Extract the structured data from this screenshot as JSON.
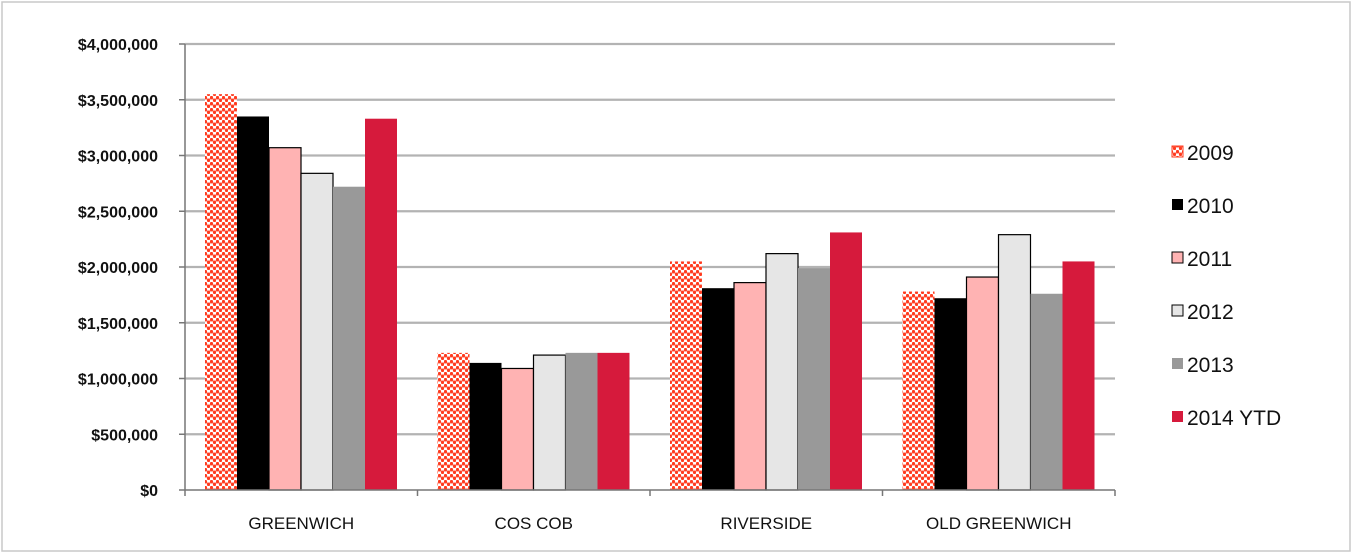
{
  "top_caption": "",
  "chart_data": {
    "type": "bar",
    "title": "",
    "xlabel": "",
    "ylabel": "",
    "categories": [
      "GREENWICH",
      "COS COB",
      "RIVERSIDE",
      "OLD GREENWICH"
    ],
    "ylim": [
      0,
      4000000
    ],
    "yticks": [
      0,
      500000,
      1000000,
      1500000,
      2000000,
      2500000,
      3000000,
      3500000,
      4000000
    ],
    "ytick_labels": [
      "$0",
      "$500,000",
      "$1,000,000",
      "$1,500,000",
      "$2,000,000",
      "$2,500,000",
      "$3,000,000",
      "$3,500,000",
      "$4,000,000"
    ],
    "grid": true,
    "legend_position": "right",
    "series": [
      {
        "name": "2009",
        "color": "#ff3b1f",
        "pattern": "dotted",
        "values": [
          3550000,
          1230000,
          2050000,
          1780000
        ]
      },
      {
        "name": "2010",
        "color": "#000000",
        "pattern": "solid",
        "values": [
          3350000,
          1140000,
          1810000,
          1720000
        ]
      },
      {
        "name": "2011",
        "color": "#ffb3b3",
        "pattern": "solid",
        "values": [
          3070000,
          1090000,
          1860000,
          1910000
        ]
      },
      {
        "name": "2012",
        "color": "#e6e6e6",
        "pattern": "solid",
        "values": [
          2840000,
          1210000,
          2120000,
          2290000
        ]
      },
      {
        "name": "2013",
        "color": "#999999",
        "pattern": "solid",
        "values": [
          2720000,
          1230000,
          1990000,
          1760000
        ]
      },
      {
        "name": "2014 YTD",
        "color": "#d61a3c",
        "pattern": "solid",
        "values": [
          3330000,
          1230000,
          2310000,
          2050000
        ]
      }
    ]
  }
}
